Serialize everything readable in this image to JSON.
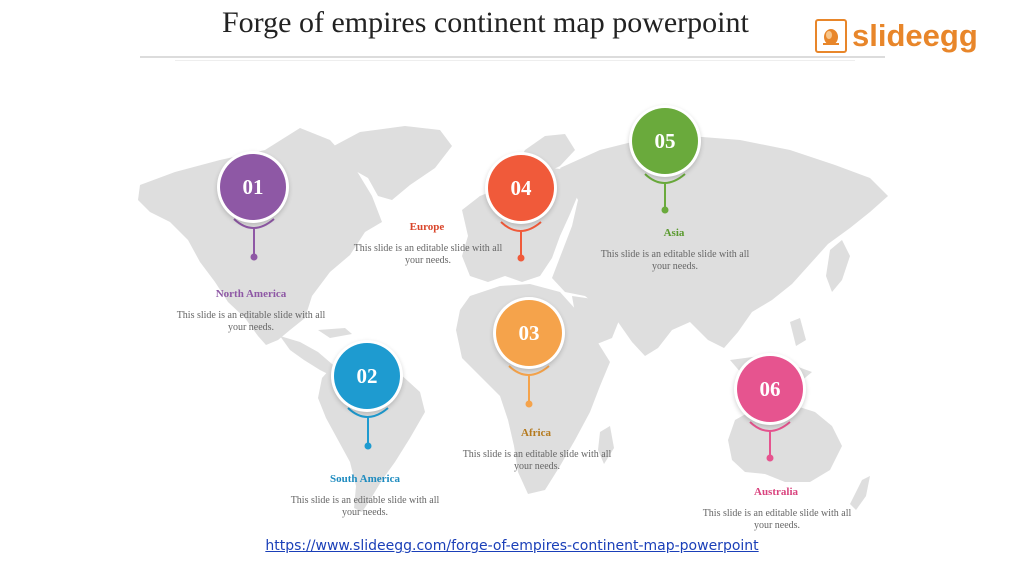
{
  "title": "Forge of empires continent map powerpoint",
  "logo": {
    "text": "slideegg",
    "icon": "egg-logo-icon",
    "color": "#e8862a"
  },
  "map_color": "#dddddd",
  "markers": [
    {
      "number": "01",
      "name": "North America",
      "text": "This slide is an editable slide with all your needs.",
      "color": "#8e58a5"
    },
    {
      "number": "02",
      "name": "South America",
      "text": "This slide is an editable slide with all your needs.",
      "color": "#1e9bd0"
    },
    {
      "number": "03",
      "name": "Africa",
      "text": "This slide is an editable slide with all your needs.",
      "color": "#f5a34b"
    },
    {
      "number": "04",
      "name": "Europe",
      "text": "This slide is an editable slide with all your needs.",
      "color": "#f05a3a"
    },
    {
      "number": "05",
      "name": "Asia",
      "text": "This slide is an editable slide with all your needs.",
      "color": "#6aaa3c"
    },
    {
      "number": "06",
      "name": "Australia",
      "text": "This slide is an editable slide with all your needs.",
      "color": "#e6548f"
    }
  ],
  "url": "https://www.slideegg.com/forge-of-empires-continent-map-powerpoint"
}
